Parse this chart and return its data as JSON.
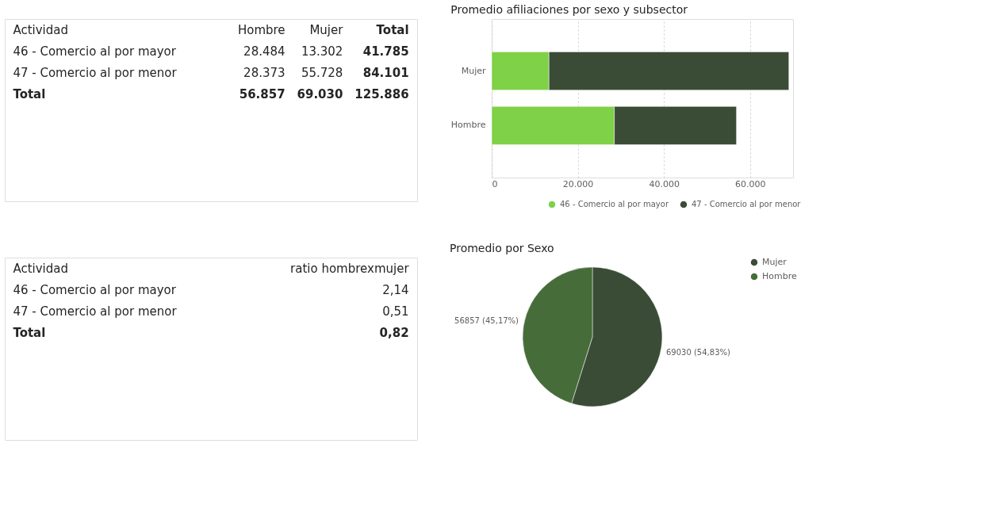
{
  "chart_data": [
    {
      "type": "other",
      "annotations": [
        "Actividad",
        "Hombre",
        "Mujer",
        "Total",
        "46 - Comercio al por mayor",
        "28.484",
        "13.302",
        "41.785",
        "47 - Comercio al por menor",
        "28.373",
        "55.728",
        "84.101",
        "Total",
        "56.857",
        "69.030",
        "125.886"
      ]
    },
    {
      "type": "bar",
      "title": "Promedio afiliaciones por sexo y subsector",
      "orientation": "horizontal",
      "stacked": true,
      "categories": [
        "Mujer",
        "Hombre"
      ],
      "series": [
        {
          "name": "46 - Comercio al por mayor",
          "color": "#7fd148",
          "values": [
            13302,
            28484
          ]
        },
        {
          "name": "47 - Comercio al por menor",
          "color": "#3b4c36",
          "values": [
            55728,
            28373
          ]
        }
      ],
      "xlim": [
        0,
        70000
      ],
      "xticks": [
        0,
        {
          "value": 20000,
          "label": "20.000"
        },
        {
          "value": 40000,
          "label": "40.000"
        },
        {
          "value": 60000,
          "label": "60.000"
        }
      ],
      "grid": "x",
      "legend": "bottom right"
    },
    {
      "type": "other",
      "annotations": [
        "Actividad",
        "ratio hombrexmujer",
        "46 - Comercio al por mayor",
        "2,14",
        "47 - Comercio al por menor",
        "0,51",
        "Total",
        "0,82"
      ]
    },
    {
      "type": "pie",
      "title": "Promedio por Sexo",
      "categories": [
        "Mujer",
        "Hombre"
      ],
      "values": [
        69030,
        56857
      ],
      "colors": [
        "#3b4c36",
        "#466c3a"
      ],
      "value_labels": [
        "69030 (54,83%)",
        "56857 (45,17%)"
      ],
      "legend": "right"
    }
  ]
}
